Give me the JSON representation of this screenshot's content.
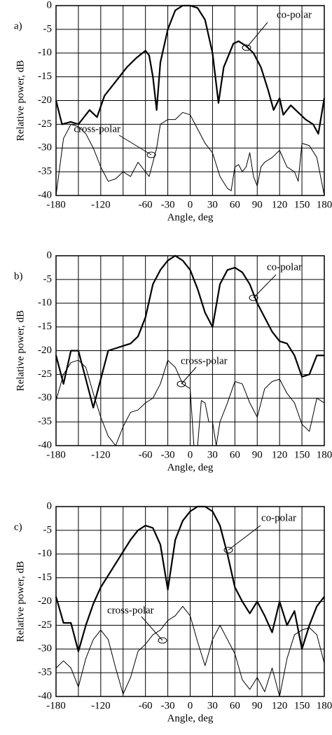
{
  "chart_data": [
    {
      "type": "line",
      "panel_label": "a)",
      "ylabel": "Relative power, dB",
      "xlabel": "Angle, deg",
      "xlim": [
        -180,
        180
      ],
      "ylim": [
        -40,
        0
      ],
      "xticks": [
        -180,
        -120,
        -60,
        -30,
        0,
        30,
        60,
        90,
        120,
        150,
        180
      ],
      "xgrid": [
        -180,
        -150,
        -120,
        -90,
        -60,
        -30,
        0,
        30,
        60,
        90,
        120,
        150,
        180
      ],
      "yticks": [
        0,
        -5,
        -10,
        -15,
        -20,
        -25,
        -30,
        -35,
        -40
      ],
      "grid": true,
      "series": [
        {
          "name": "co-polar",
          "color": "#000000",
          "line_width": 2.2,
          "x": [
            -180,
            -172,
            -160,
            -150,
            -135,
            -125,
            -115,
            -100,
            -85,
            -72,
            -60,
            -55,
            -50,
            -45,
            -40,
            -30,
            -20,
            -10,
            0,
            10,
            20,
            30,
            38,
            45,
            58,
            65,
            75,
            85,
            95,
            105,
            112,
            120,
            125,
            135,
            145,
            155,
            165,
            172,
            180
          ],
          "values": [
            -20,
            -25,
            -24.5,
            -25,
            -22,
            -23.5,
            -19,
            -16,
            -13,
            -11,
            -9.5,
            -10.5,
            -15,
            -22,
            -12,
            -5,
            -1,
            0,
            0,
            -0.5,
            -3,
            -10,
            -20.5,
            -13,
            -8,
            -7.5,
            -8.5,
            -10,
            -13,
            -18,
            -22,
            -19.5,
            -23,
            -21,
            -22.5,
            -24,
            -25,
            -27,
            -19.5
          ]
        },
        {
          "name": "cross-polar",
          "color": "#000000",
          "line_width": 1,
          "x": [
            -180,
            -170,
            -160,
            -150,
            -140,
            -130,
            -120,
            -110,
            -100,
            -90,
            -80,
            -70,
            -60,
            -55,
            -50,
            -45,
            -40,
            -30,
            -20,
            -10,
            0,
            10,
            20,
            30,
            40,
            50,
            55,
            60,
            65,
            70,
            75,
            80,
            85,
            90,
            95,
            100,
            110,
            120,
            130,
            140,
            145,
            150,
            160,
            170,
            180
          ],
          "values": [
            -40,
            -28,
            -25,
            -25.5,
            -27,
            -30,
            -34,
            -37,
            -36.5,
            -35,
            -36,
            -33,
            -35,
            -36,
            -33,
            -30,
            -25,
            -24,
            -24,
            -22.5,
            -23,
            -26,
            -29,
            -31,
            -36,
            -38.5,
            -39,
            -34,
            -33.5,
            -35,
            -34,
            -31,
            -36,
            -38,
            -34,
            -33,
            -32,
            -30.5,
            -34,
            -35,
            -37,
            -29,
            -29.5,
            -32,
            -40
          ]
        }
      ]
    },
    {
      "type": "line",
      "panel_label": "b)",
      "ylabel": "Relative power, dB",
      "xlabel": "Angle, deg",
      "xlim": [
        -180,
        180
      ],
      "ylim": [
        -40,
        0
      ],
      "xticks": [
        -180,
        -120,
        -60,
        -30,
        0,
        30,
        60,
        90,
        120,
        150,
        180
      ],
      "xgrid": [
        -180,
        -150,
        -120,
        -90,
        -60,
        -30,
        0,
        30,
        60,
        90,
        120,
        150,
        180
      ],
      "yticks": [
        0,
        -5,
        -10,
        -15,
        -20,
        -25,
        -30,
        -35,
        -40
      ],
      "grid": true,
      "series": [
        {
          "name": "co-polar",
          "color": "#000000",
          "line_width": 2.2,
          "x": [
            -180,
            -170,
            -160,
            -150,
            -140,
            -130,
            -120,
            -110,
            -100,
            -90,
            -80,
            -70,
            -60,
            -50,
            -40,
            -30,
            -20,
            -10,
            0,
            10,
            20,
            30,
            40,
            50,
            60,
            70,
            80,
            90,
            100,
            110,
            120,
            130,
            140,
            150,
            160,
            170,
            180
          ],
          "values": [
            -21,
            -27,
            -20,
            -20,
            -26,
            -32,
            -26,
            -20,
            -19.5,
            -19,
            -18.5,
            -17,
            -13,
            -6,
            -3,
            -1,
            0,
            -1,
            -3,
            -7,
            -12,
            -15,
            -6,
            -3,
            -2.5,
            -3.5,
            -6,
            -10,
            -13,
            -16,
            -18,
            -18.5,
            -21,
            -25.5,
            -25,
            -21,
            -21
          ]
        },
        {
          "name": "cross-polar",
          "color": "#000000",
          "line_width": 1,
          "x": [
            -180,
            -170,
            -160,
            -150,
            -140,
            -130,
            -120,
            -110,
            -100,
            -90,
            -80,
            -70,
            -60,
            -50,
            -40,
            -30,
            -20,
            -10,
            0,
            5,
            10,
            15,
            20,
            25,
            30,
            35,
            40,
            50,
            60,
            70,
            80,
            90,
            100,
            110,
            120,
            130,
            140,
            150,
            160,
            170,
            180
          ],
          "values": [
            -30.5,
            -25,
            -22.5,
            -22,
            -23.5,
            -29,
            -34,
            -38,
            -40,
            -36,
            -33,
            -32.5,
            -31,
            -30,
            -27,
            -22,
            -23.5,
            -27,
            -28,
            -40,
            -40,
            -30.5,
            -31,
            -35,
            -35,
            -40,
            -35,
            -31,
            -26.5,
            -27,
            -31,
            -34,
            -28,
            -26.5,
            -26,
            -29,
            -31,
            -35.5,
            -37,
            -30,
            -31
          ]
        }
      ]
    },
    {
      "type": "line",
      "panel_label": "c)",
      "ylabel": "Relative power, dB",
      "xlabel": "Angle, deg",
      "xlim": [
        -180,
        180
      ],
      "ylim": [
        -40,
        0
      ],
      "xticks": [
        -180,
        -120,
        -60,
        -30,
        0,
        30,
        60,
        90,
        120,
        150,
        180
      ],
      "xgrid": [
        -180,
        -150,
        -120,
        -90,
        -60,
        -30,
        0,
        30,
        60,
        90,
        120,
        150,
        180
      ],
      "yticks": [
        0,
        -5,
        -10,
        -15,
        -20,
        -25,
        -30,
        -35,
        -40
      ],
      "grid": true,
      "series": [
        {
          "name": "co-polar",
          "color": "#000000",
          "line_width": 2.2,
          "x": [
            -180,
            -170,
            -160,
            -150,
            -140,
            -130,
            -120,
            -110,
            -100,
            -90,
            -80,
            -70,
            -60,
            -50,
            -40,
            -30,
            -20,
            -10,
            0,
            10,
            20,
            30,
            40,
            50,
            60,
            70,
            80,
            90,
            100,
            110,
            120,
            130,
            140,
            150,
            160,
            170,
            180
          ],
          "values": [
            -19,
            -24.5,
            -24.5,
            -30.5,
            -25,
            -20.5,
            -17,
            -14.5,
            -12,
            -9.5,
            -7,
            -5,
            -4,
            -4.5,
            -8,
            -17.5,
            -7,
            -3,
            -1,
            0,
            0,
            -1,
            -4,
            -10,
            -17,
            -20,
            -22.5,
            -20,
            -23,
            -26.5,
            -20,
            -25,
            -22,
            -30,
            -25,
            -21,
            -19
          ]
        },
        {
          "name": "cross-polar",
          "color": "#000000",
          "line_width": 1,
          "x": [
            -180,
            -170,
            -160,
            -150,
            -140,
            -130,
            -120,
            -110,
            -100,
            -90,
            -80,
            -70,
            -60,
            -50,
            -40,
            -30,
            -20,
            -10,
            0,
            10,
            20,
            30,
            40,
            50,
            60,
            70,
            80,
            90,
            100,
            110,
            120,
            130,
            140,
            150,
            160,
            170,
            180
          ],
          "values": [
            -34,
            -32.5,
            -34,
            -38,
            -32,
            -28,
            -26,
            -28,
            -34,
            -39.5,
            -36,
            -30.5,
            -29,
            -27,
            -26,
            -24,
            -23,
            -21,
            -23,
            -28.5,
            -33.5,
            -28,
            -25,
            -28,
            -31,
            -36.5,
            -38.5,
            -36,
            -39,
            -34,
            -40,
            -32,
            -27,
            -26,
            -25.5,
            -27,
            -33
          ]
        }
      ]
    }
  ]
}
